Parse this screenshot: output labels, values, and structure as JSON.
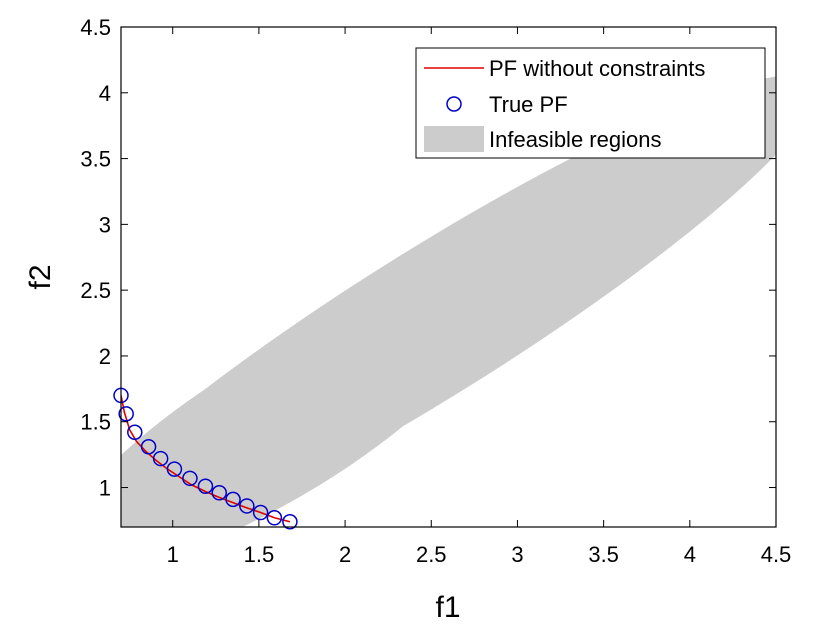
{
  "chart_data": {
    "type": "scatter",
    "title": "",
    "xlabel": "f1",
    "ylabel": "f2",
    "xlim": [
      0.7,
      4.5
    ],
    "ylim": [
      0.7,
      4.5
    ],
    "xticks": [
      1,
      1.5,
      2,
      2.5,
      3,
      3.5,
      4,
      4.5
    ],
    "xtick_labels": [
      "1",
      "1.5",
      "2",
      "2.5",
      "3",
      "3.5",
      "4",
      "4.5"
    ],
    "yticks": [
      1,
      1.5,
      2,
      2.5,
      3,
      3.5,
      4,
      4.5
    ],
    "ytick_labels": [
      "1",
      "1.5",
      "2",
      "2.5",
      "3",
      "3.5",
      "4",
      "4.5"
    ],
    "grid": false,
    "box": true,
    "legend_position": "top-right",
    "series": [
      {
        "name": "PF without constraints",
        "kind": "line",
        "color": "#e00000",
        "x": [
          0.7,
          0.72,
          0.75,
          0.79,
          0.84,
          0.9,
          0.97,
          1.04,
          1.11,
          1.19,
          1.26,
          1.34,
          1.42,
          1.51,
          1.59,
          1.68
        ],
        "y": [
          1.7,
          1.57,
          1.44,
          1.35,
          1.28,
          1.21,
          1.14,
          1.08,
          1.02,
          0.97,
          0.93,
          0.89,
          0.85,
          0.81,
          0.77,
          0.74
        ]
      },
      {
        "name": "True PF",
        "kind": "marker",
        "marker": "circle-open",
        "color": "#0000c8",
        "x": [
          0.7,
          0.73,
          0.78,
          0.86,
          0.93,
          1.01,
          1.1,
          1.19,
          1.27,
          1.35,
          1.43,
          1.51,
          1.59,
          1.68
        ],
        "y": [
          1.7,
          1.56,
          1.42,
          1.31,
          1.22,
          1.14,
          1.07,
          1.01,
          0.96,
          0.91,
          0.86,
          0.81,
          0.77,
          0.74
        ]
      },
      {
        "name": "Infeasible regions",
        "kind": "region",
        "color": "#cccccc",
        "regions": [
          {
            "center": [
              1.6,
              1.45
            ],
            "rx": 1.42,
            "ry": 0.54,
            "rotation_deg": -31
          },
          {
            "center": [
              2.5,
              2.25
            ],
            "rx": 2.63,
            "ry": 0.56,
            "rotation_deg": -32
          }
        ]
      }
    ]
  }
}
